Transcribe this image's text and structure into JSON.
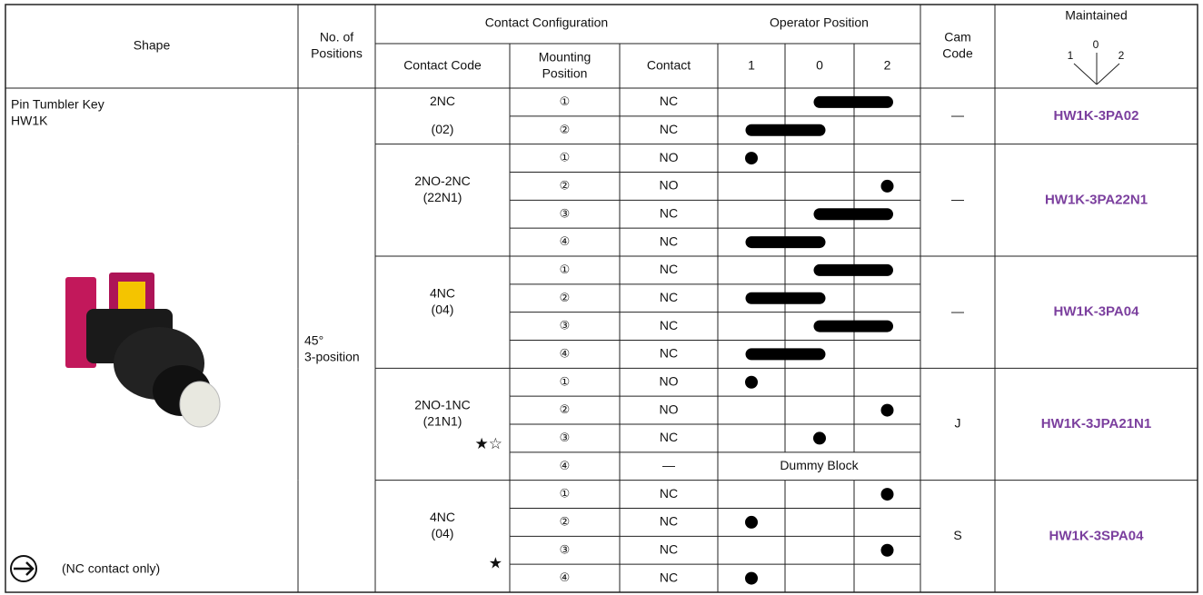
{
  "header": {
    "shape": "Shape",
    "positions": [
      "No. of",
      "Positions"
    ],
    "contact_configuration": "Contact Configuration",
    "contact_code": "Contact Code",
    "mounting_position": [
      "Mounting",
      "Position"
    ],
    "contact": "Contact",
    "operator_position": "Operator Position",
    "operator_labels": [
      "1",
      "0",
      "2"
    ],
    "cam_code": [
      "Cam",
      "Code"
    ],
    "maintained": "Maintained",
    "maintained_labels": [
      "1",
      "0",
      "2"
    ]
  },
  "shape": {
    "name": "Pin Tumbler Key",
    "model": "HW1K",
    "note": "(NC contact only)"
  },
  "positions": [
    "45°",
    "3-position"
  ],
  "groups": [
    {
      "code": [
        "2NC",
        "(02)"
      ],
      "cam": "—",
      "part": "HW1K-3PA02",
      "rows": [
        {
          "mounting": "①",
          "contact": "NC"
        },
        {
          "mounting": "②",
          "contact": "NC"
        }
      ]
    },
    {
      "code": [
        "2NO-2NC",
        "(22N1)"
      ],
      "cam": "—",
      "part": "HW1K-3PA22N1",
      "rows": [
        {
          "mounting": "①",
          "contact": "NO"
        },
        {
          "mounting": "②",
          "contact": "NO"
        },
        {
          "mounting": "③",
          "contact": "NC"
        },
        {
          "mounting": "④",
          "contact": "NC"
        }
      ]
    },
    {
      "code": [
        "4NC",
        "(04)"
      ],
      "cam": "—",
      "part": "HW1K-3PA04",
      "rows": [
        {
          "mounting": "①",
          "contact": "NC"
        },
        {
          "mounting": "②",
          "contact": "NC"
        },
        {
          "mounting": "③",
          "contact": "NC"
        },
        {
          "mounting": "④",
          "contact": "NC"
        }
      ]
    },
    {
      "code": [
        "2NO-1NC",
        "(21N1)"
      ],
      "mark": "★☆",
      "cam": "J",
      "part": "HW1K-3JPA21N1",
      "rows": [
        {
          "mounting": "①",
          "contact": "NO"
        },
        {
          "mounting": "②",
          "contact": "NO"
        },
        {
          "mounting": "③",
          "contact": "NC"
        },
        {
          "mounting": "④",
          "contact": "—",
          "operator": "Dummy Block"
        }
      ]
    },
    {
      "code": [
        "4NC",
        "(04)"
      ],
      "mark": "★",
      "cam": "S",
      "part": "HW1K-3SPA04",
      "rows": [
        {
          "mounting": "①",
          "contact": "NC"
        },
        {
          "mounting": "②",
          "contact": "NC"
        },
        {
          "mounting": "③",
          "contact": "NC"
        },
        {
          "mounting": "④",
          "contact": "NC"
        }
      ]
    }
  ]
}
